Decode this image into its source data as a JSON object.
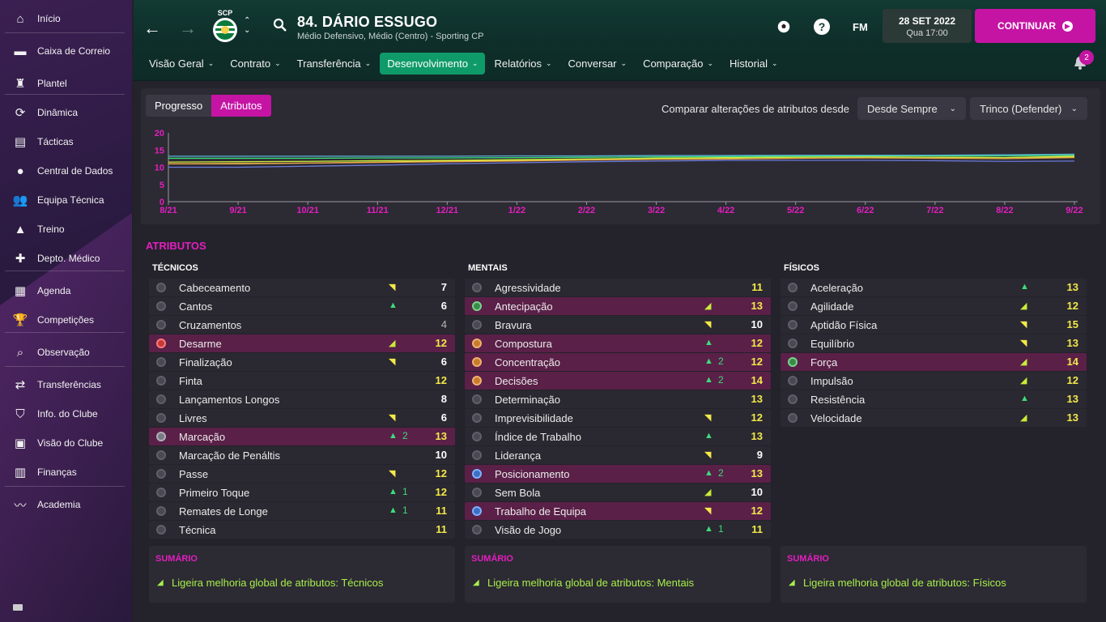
{
  "sidebar": {
    "items": [
      {
        "label": "Início",
        "icon": "home-icon"
      },
      {
        "label": "Caixa de Correio",
        "icon": "inbox-icon"
      },
      {
        "label": "Plantel",
        "icon": "shirt-icon"
      },
      {
        "label": "Dinâmica",
        "icon": "dynamics-icon"
      },
      {
        "label": "Tácticas",
        "icon": "tactics-board-icon"
      },
      {
        "label": "Central de Dados",
        "icon": "data-hub-icon"
      },
      {
        "label": "Equipa Técnica",
        "icon": "staff-icon"
      },
      {
        "label": "Treino",
        "icon": "training-cone-icon"
      },
      {
        "label": "Depto. Médico",
        "icon": "medical-kit-icon"
      },
      {
        "label": "Agenda",
        "icon": "calendar-icon"
      },
      {
        "label": "Competições",
        "icon": "trophy-icon"
      },
      {
        "label": "Observação",
        "icon": "magnifier-icon"
      },
      {
        "label": "Transferências",
        "icon": "transfer-arrows-icon"
      },
      {
        "label": "Info. do Clube",
        "icon": "club-shield-icon"
      },
      {
        "label": "Visão do Clube",
        "icon": "briefcase-icon"
      },
      {
        "label": "Finanças",
        "icon": "money-icon"
      },
      {
        "label": "Academia",
        "icon": "trend-line-icon"
      }
    ]
  },
  "header": {
    "club_abbr": "SCP",
    "player_title": "84. DÁRIO ESSUGO",
    "player_subtitle": "Médio Defensivo, Médio (Centro) - Sporting CP",
    "fm_label": "FM",
    "date": "28 SET 2022",
    "day_time": "Qua 17:00",
    "continue_label": "CONTINUAR",
    "notification_count": "2"
  },
  "nav": {
    "tabs": [
      {
        "label": "Visão Geral",
        "active": false
      },
      {
        "label": "Contrato",
        "active": false
      },
      {
        "label": "Transferência",
        "active": false
      },
      {
        "label": "Desenvolvimento",
        "active": true
      },
      {
        "label": "Relatórios",
        "active": false
      },
      {
        "label": "Conversar",
        "active": false
      },
      {
        "label": "Comparação",
        "active": false
      },
      {
        "label": "Historial",
        "active": false
      }
    ]
  },
  "panel": {
    "progress_tab": "Progresso",
    "attributes_tab": "Atributos",
    "compare_label": "Comparar alterações de atributos desde",
    "since_dropdown": "Desde Sempre",
    "role_dropdown": "Trinco (Defender)"
  },
  "chart_data": {
    "type": "line",
    "x": [
      "8/21",
      "9/21",
      "10/21",
      "11/21",
      "12/21",
      "1/22",
      "2/22",
      "3/22",
      "4/22",
      "5/22",
      "6/22",
      "7/22",
      "8/22",
      "9/22"
    ],
    "yticks": [
      0,
      5,
      10,
      15,
      20
    ],
    "ylim": [
      0,
      20
    ],
    "grid": false,
    "series": [
      {
        "color": "#f2e94a",
        "values": [
          11,
          11,
          11.2,
          11.5,
          11.8,
          12,
          12.3,
          12.6,
          12.8,
          13,
          13,
          12.9,
          12.8,
          13.2
        ]
      },
      {
        "color": "#c8ec3a",
        "values": [
          11.5,
          11.6,
          11.7,
          11.9,
          12,
          12.2,
          12.4,
          12.6,
          12.7,
          12.9,
          13,
          12.9,
          12.8,
          13
        ]
      },
      {
        "color": "#3ddc7a",
        "values": [
          12.6,
          12.6,
          12.6,
          12.7,
          12.7,
          12.8,
          12.9,
          13,
          13.1,
          13.2,
          13.3,
          13.3,
          13.3,
          13.5
        ]
      },
      {
        "color": "#5ab4d8",
        "values": [
          13.2,
          13.2,
          13.2,
          13.2,
          13.2,
          13.3,
          13.3,
          13.4,
          13.4,
          13.5,
          13.5,
          13.5,
          13.6,
          13.8
        ]
      },
      {
        "color": "#e8a14a",
        "values": [
          11,
          11.1,
          11.2,
          11.4,
          11.6,
          11.8,
          12.1,
          12.3,
          12.4,
          12.6,
          12.7,
          12.6,
          12.5,
          12.8
        ]
      },
      {
        "color": "#6a7bd8",
        "values": [
          10,
          10,
          10.3,
          10.6,
          11,
          11.3,
          11.6,
          11.8,
          12,
          12,
          12,
          11.9,
          11.7,
          11.8
        ]
      }
    ]
  },
  "attributes": {
    "title": "ATRIBUTOS",
    "summary_title": "SUMÁRIO",
    "columns": [
      {
        "header": "TÉCNICOS",
        "summary": "Ligeira melhoria global de atributos: Técnicos",
        "rows": [
          {
            "name": "Cabeceamento",
            "trend": "sd",
            "change": "",
            "value": "7",
            "vc": "w",
            "hl": false,
            "dot": ""
          },
          {
            "name": "Cantos",
            "trend": "up",
            "change": "",
            "value": "6",
            "vc": "w",
            "hl": false,
            "dot": ""
          },
          {
            "name": "Cruzamentos",
            "trend": "",
            "change": "",
            "value": "4",
            "vc": "g",
            "hl": false,
            "dot": ""
          },
          {
            "name": "Desarme",
            "trend": "su",
            "change": "",
            "value": "12",
            "vc": "y",
            "hl": true,
            "dot": "red"
          },
          {
            "name": "Finalização",
            "trend": "sd",
            "change": "",
            "value": "6",
            "vc": "w",
            "hl": false,
            "dot": ""
          },
          {
            "name": "Finta",
            "trend": "",
            "change": "",
            "value": "12",
            "vc": "y",
            "hl": false,
            "dot": ""
          },
          {
            "name": "Lançamentos Longos",
            "trend": "",
            "change": "",
            "value": "8",
            "vc": "w",
            "hl": false,
            "dot": ""
          },
          {
            "name": "Livres",
            "trend": "sd",
            "change": "",
            "value": "6",
            "vc": "w",
            "hl": false,
            "dot": ""
          },
          {
            "name": "Marcação",
            "trend": "up",
            "change": "2",
            "value": "13",
            "vc": "y",
            "hl": true,
            "dot": "gray"
          },
          {
            "name": "Marcação de Penáltis",
            "trend": "",
            "change": "",
            "value": "10",
            "vc": "w",
            "hl": false,
            "dot": ""
          },
          {
            "name": "Passe",
            "trend": "sd",
            "change": "",
            "value": "12",
            "vc": "y",
            "hl": false,
            "dot": ""
          },
          {
            "name": "Primeiro Toque",
            "trend": "up",
            "change": "1",
            "value": "12",
            "vc": "y",
            "hl": false,
            "dot": ""
          },
          {
            "name": "Remates de Longe",
            "trend": "up",
            "change": "1",
            "value": "11",
            "vc": "y",
            "hl": false,
            "dot": ""
          },
          {
            "name": "Técnica",
            "trend": "",
            "change": "",
            "value": "11",
            "vc": "y",
            "hl": false,
            "dot": ""
          }
        ]
      },
      {
        "header": "MENTAIS",
        "summary": "Ligeira melhoria global de atributos: Mentais",
        "rows": [
          {
            "name": "Agressividade",
            "trend": "",
            "change": "",
            "value": "11",
            "vc": "y",
            "hl": false,
            "dot": ""
          },
          {
            "name": "Antecipação",
            "trend": "su",
            "change": "",
            "value": "13",
            "vc": "y",
            "hl": true,
            "dot": "green"
          },
          {
            "name": "Bravura",
            "trend": "sd",
            "change": "",
            "value": "10",
            "vc": "w",
            "hl": false,
            "dot": ""
          },
          {
            "name": "Compostura",
            "trend": "up",
            "change": "",
            "value": "12",
            "vc": "y",
            "hl": true,
            "dot": "orange"
          },
          {
            "name": "Concentração",
            "trend": "up",
            "change": "2",
            "value": "12",
            "vc": "y",
            "hl": true,
            "dot": "orange"
          },
          {
            "name": "Decisões",
            "trend": "up",
            "change": "2",
            "value": "14",
            "vc": "y",
            "hl": true,
            "dot": "orange"
          },
          {
            "name": "Determinação",
            "trend": "",
            "change": "",
            "value": "13",
            "vc": "y",
            "hl": false,
            "dot": ""
          },
          {
            "name": "Imprevisibilidade",
            "trend": "sd",
            "change": "",
            "value": "12",
            "vc": "y",
            "hl": false,
            "dot": ""
          },
          {
            "name": "Índice de Trabalho",
            "trend": "up",
            "change": "",
            "value": "13",
            "vc": "y",
            "hl": false,
            "dot": ""
          },
          {
            "name": "Liderança",
            "trend": "sd",
            "change": "",
            "value": "9",
            "vc": "w",
            "hl": false,
            "dot": ""
          },
          {
            "name": "Posicionamento",
            "trend": "up",
            "change": "2",
            "value": "13",
            "vc": "y",
            "hl": true,
            "dot": "blue"
          },
          {
            "name": "Sem Bola",
            "trend": "su",
            "change": "",
            "value": "10",
            "vc": "w",
            "hl": false,
            "dot": ""
          },
          {
            "name": "Trabalho de Equipa",
            "trend": "sd",
            "change": "",
            "value": "12",
            "vc": "y",
            "hl": true,
            "dot": "blue"
          },
          {
            "name": "Visão de Jogo",
            "trend": "up",
            "change": "1",
            "value": "11",
            "vc": "y",
            "hl": false,
            "dot": ""
          }
        ]
      },
      {
        "header": "FÍSICOS",
        "summary": "Ligeira melhoria global de atributos: Físicos",
        "rows": [
          {
            "name": "Aceleração",
            "trend": "up",
            "change": "",
            "value": "13",
            "vc": "y",
            "hl": false,
            "dot": ""
          },
          {
            "name": "Agilidade",
            "trend": "su",
            "change": "",
            "value": "12",
            "vc": "y",
            "hl": false,
            "dot": ""
          },
          {
            "name": "Aptidão Física",
            "trend": "sd",
            "change": "",
            "value": "15",
            "vc": "y",
            "hl": false,
            "dot": ""
          },
          {
            "name": "Equilíbrio",
            "trend": "sd",
            "change": "",
            "value": "13",
            "vc": "y",
            "hl": false,
            "dot": ""
          },
          {
            "name": "Força",
            "trend": "su",
            "change": "",
            "value": "14",
            "vc": "y",
            "hl": true,
            "dot": "green"
          },
          {
            "name": "Impulsão",
            "trend": "su",
            "change": "",
            "value": "12",
            "vc": "y",
            "hl": false,
            "dot": ""
          },
          {
            "name": "Resistência",
            "trend": "up",
            "change": "",
            "value": "13",
            "vc": "y",
            "hl": false,
            "dot": ""
          },
          {
            "name": "Velocidade",
            "trend": "su",
            "change": "",
            "value": "13",
            "vc": "y",
            "hl": false,
            "dot": ""
          }
        ]
      }
    ]
  }
}
